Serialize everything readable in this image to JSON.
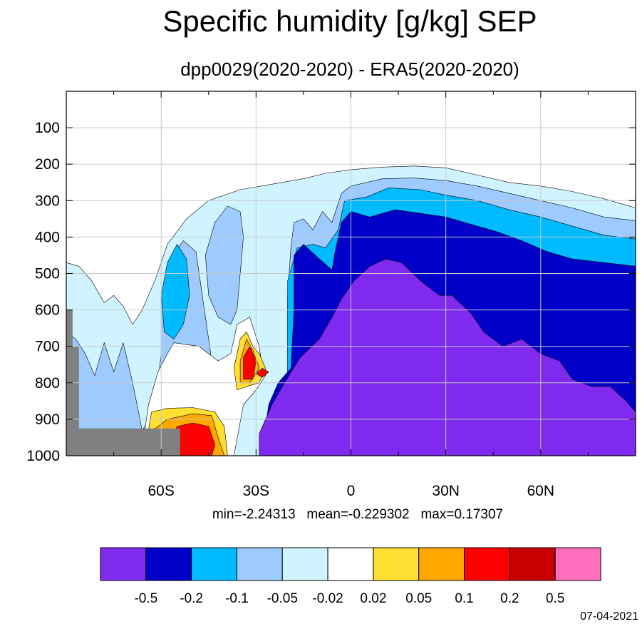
{
  "chart_data": {
    "type": "heatmap",
    "title": "Specific humidity [g/kg] SEP",
    "subtitle": "dpp0029(2020-2020) - ERA5(2020-2020)",
    "stats": "min=-2.24313   mean=-0.229302   max=0.17307",
    "date": "07-04-2021",
    "xlim": [
      -90,
      90
    ],
    "ylim": [
      1000,
      0
    ],
    "x_ticks": [
      {
        "value": -60,
        "label": "60S"
      },
      {
        "value": -30,
        "label": "30S"
      },
      {
        "value": 0,
        "label": "0"
      },
      {
        "value": 30,
        "label": "30N"
      },
      {
        "value": 60,
        "label": "60N"
      }
    ],
    "y_ticks": [
      {
        "value": 100,
        "label": "100"
      },
      {
        "value": 200,
        "label": "200"
      },
      {
        "value": 300,
        "label": "300"
      },
      {
        "value": 400,
        "label": "400"
      },
      {
        "value": 500,
        "label": "500"
      },
      {
        "value": 600,
        "label": "600"
      },
      {
        "value": 700,
        "label": "700"
      },
      {
        "value": 800,
        "label": "800"
      },
      {
        "value": 900,
        "label": "900"
      },
      {
        "value": 1000,
        "label": "1000"
      }
    ],
    "grid": true,
    "colorbar": {
      "colors": [
        "#7f2aee",
        "#0000c8",
        "#00bbff",
        "#9ecbff",
        "#d0f4ff",
        "#ffffff",
        "#ffe030",
        "#ffa800",
        "#ff0000",
        "#c80000",
        "#ff6ebe"
      ],
      "labels": [
        "-0.5",
        "-0.2",
        "-0.1",
        "-0.05",
        "-0.02",
        "0.02",
        "0.05",
        "0.1",
        "0.2",
        "0.5"
      ]
    },
    "missing_color": "#808080",
    "contours": [
      {
        "level": -0.02,
        "color": "#d0f4ff",
        "points": [
          [
            -90,
            470
          ],
          [
            -86,
            480
          ],
          [
            -82,
            520
          ],
          [
            -78,
            580
          ],
          [
            -75,
            560
          ],
          [
            -72,
            590
          ],
          [
            -69,
            640
          ],
          [
            -66,
            600
          ],
          [
            -62,
            520
          ],
          [
            -58,
            420
          ],
          [
            -52,
            350
          ],
          [
            -45,
            300
          ],
          [
            -35,
            270
          ],
          [
            -25,
            255
          ],
          [
            -15,
            240
          ],
          [
            -8,
            225
          ],
          [
            0,
            215
          ],
          [
            10,
            208
          ],
          [
            20,
            205
          ],
          [
            30,
            210
          ],
          [
            40,
            230
          ],
          [
            50,
            250
          ],
          [
            60,
            260
          ],
          [
            70,
            275
          ],
          [
            80,
            295
          ],
          [
            86,
            310
          ],
          [
            90,
            320
          ],
          [
            90,
            1000
          ],
          [
            -90,
            1000
          ]
        ]
      },
      {
        "level": -0.05,
        "color": "#9ecbff",
        "points": [
          [
            -90,
            660
          ],
          [
            -87,
            680
          ],
          [
            -84,
            720
          ],
          [
            -81,
            780
          ],
          [
            -78,
            690
          ],
          [
            -75,
            770
          ],
          [
            -72,
            690
          ],
          [
            -69,
            800
          ],
          [
            -66,
            930
          ],
          [
            -62,
            880
          ],
          [
            -60,
            720
          ],
          [
            -60,
            560
          ],
          [
            -57,
            460
          ],
          [
            -53,
            410
          ],
          [
            -49,
            440
          ],
          [
            -47,
            560
          ],
          [
            -45,
            680
          ],
          [
            -42,
            860
          ],
          [
            -40,
            1000
          ],
          [
            -90,
            1000
          ]
        ]
      },
      {
        "level": -0.05,
        "color": "#9ecbff",
        "points": [
          [
            -46,
            450
          ],
          [
            -43,
            360
          ],
          [
            -39,
            315
          ],
          [
            -35,
            330
          ],
          [
            -34,
            400
          ],
          [
            -35,
            500
          ],
          [
            -36,
            600
          ],
          [
            -38,
            640
          ],
          [
            -42,
            620
          ],
          [
            -45,
            560
          ]
        ]
      },
      {
        "level": -0.05,
        "color": "#9ecbff",
        "points": [
          [
            -20,
            1000
          ],
          [
            -20,
            560
          ],
          [
            -19,
            430
          ],
          [
            -18,
            360
          ],
          [
            -15,
            350
          ],
          [
            -12,
            380
          ],
          [
            -9,
            330
          ],
          [
            -6,
            360
          ],
          [
            -3,
            280
          ],
          [
            0,
            260
          ],
          [
            10,
            240
          ],
          [
            20,
            238
          ],
          [
            30,
            245
          ],
          [
            40,
            260
          ],
          [
            50,
            280
          ],
          [
            60,
            300
          ],
          [
            70,
            320
          ],
          [
            80,
            345
          ],
          [
            90,
            355
          ],
          [
            90,
            1000
          ]
        ]
      },
      {
        "level": -0.1,
        "color": "#00bbff",
        "points": [
          [
            -58,
            470
          ],
          [
            -55,
            420
          ],
          [
            -52,
            460
          ],
          [
            -51,
            560
          ],
          [
            -53,
            640
          ],
          [
            -56,
            680
          ],
          [
            -59,
            660
          ],
          [
            -60,
            560
          ]
        ]
      },
      {
        "level": -0.1,
        "color": "#00bbff",
        "points": [
          [
            -20,
            1000
          ],
          [
            -20,
            520
          ],
          [
            -17,
            430
          ],
          [
            -12,
            420
          ],
          [
            -8,
            430
          ],
          [
            -4,
            380
          ],
          [
            -2,
            300
          ],
          [
            5,
            290
          ],
          [
            12,
            265
          ],
          [
            22,
            270
          ],
          [
            30,
            285
          ],
          [
            40,
            300
          ],
          [
            50,
            325
          ],
          [
            60,
            345
          ],
          [
            70,
            370
          ],
          [
            80,
            395
          ],
          [
            90,
            405
          ],
          [
            90,
            1000
          ]
        ]
      },
      {
        "level": -0.2,
        "color": "#0000c8",
        "points": [
          [
            -26,
            1000
          ],
          [
            -27,
            920
          ],
          [
            -26,
            860
          ],
          [
            -23,
            800
          ],
          [
            -19,
            760
          ],
          [
            -18,
            600
          ],
          [
            -18,
            450
          ],
          [
            -15,
            420
          ],
          [
            -10,
            460
          ],
          [
            -6,
            490
          ],
          [
            -5,
            440
          ],
          [
            -3,
            360
          ],
          [
            0,
            330
          ],
          [
            6,
            345
          ],
          [
            14,
            325
          ],
          [
            22,
            335
          ],
          [
            30,
            345
          ],
          [
            38,
            365
          ],
          [
            46,
            385
          ],
          [
            54,
            410
          ],
          [
            62,
            440
          ],
          [
            70,
            460
          ],
          [
            80,
            470
          ],
          [
            90,
            480
          ],
          [
            90,
            1000
          ]
        ]
      },
      {
        "level": -0.5,
        "color": "#7f2aee",
        "points": [
          [
            -29,
            1000
          ],
          [
            -29,
            940
          ],
          [
            -25,
            860
          ],
          [
            -21,
            800
          ],
          [
            -16,
            730
          ],
          [
            -10,
            680
          ],
          [
            -6,
            620
          ],
          [
            -3,
            570
          ],
          [
            1,
            520
          ],
          [
            6,
            480
          ],
          [
            11,
            460
          ],
          [
            16,
            470
          ],
          [
            22,
            520
          ],
          [
            28,
            560
          ],
          [
            32,
            560
          ],
          [
            38,
            610
          ],
          [
            42,
            660
          ],
          [
            48,
            700
          ],
          [
            54,
            680
          ],
          [
            60,
            720
          ],
          [
            66,
            740
          ],
          [
            70,
            790
          ],
          [
            76,
            810
          ],
          [
            82,
            810
          ],
          [
            87,
            850
          ],
          [
            90,
            880
          ],
          [
            90,
            1000
          ]
        ]
      },
      {
        "level": 0.02,
        "color": "#ffffff",
        "points": [
          [
            -66,
            1000
          ],
          [
            -66,
            980
          ],
          [
            -64,
            860
          ],
          [
            -61,
            770
          ],
          [
            -58,
            720
          ],
          [
            -56,
            690
          ],
          [
            -48,
            700
          ],
          [
            -42,
            740
          ],
          [
            -38,
            720
          ],
          [
            -36,
            640
          ],
          [
            -32,
            620
          ],
          [
            -29,
            700
          ],
          [
            -28,
            760
          ],
          [
            -27,
            780
          ],
          [
            -30,
            820
          ],
          [
            -34,
            860
          ],
          [
            -37,
            1000
          ]
        ]
      },
      {
        "level": 0.05,
        "color": "#ffe030",
        "points": [
          [
            -65,
            1000
          ],
          [
            -64,
            930
          ],
          [
            -63,
            880
          ],
          [
            -58,
            870
          ],
          [
            -50,
            868
          ],
          [
            -43,
            880
          ],
          [
            -40,
            920
          ],
          [
            -39,
            1000
          ]
        ]
      },
      {
        "level": 0.05,
        "color": "#ffe030",
        "points": [
          [
            -36,
            820
          ],
          [
            -37,
            760
          ],
          [
            -35,
            680
          ],
          [
            -33,
            660
          ],
          [
            -31,
            700
          ],
          [
            -29,
            720
          ],
          [
            -27,
            760
          ],
          [
            -29,
            800
          ],
          [
            -33,
            810
          ]
        ]
      },
      {
        "level": 0.1,
        "color": "#ffa800",
        "points": [
          [
            -64,
            1000
          ],
          [
            -64,
            940
          ],
          [
            -58,
            900
          ],
          [
            -50,
            885
          ],
          [
            -44,
            890
          ],
          [
            -42,
            950
          ],
          [
            -40,
            1000
          ]
        ]
      },
      {
        "level": 0.1,
        "color": "#ffa800",
        "points": [
          [
            -35,
            800
          ],
          [
            -35,
            740
          ],
          [
            -33,
            680
          ],
          [
            -31,
            710
          ],
          [
            -29,
            760
          ],
          [
            -32,
            800
          ]
        ]
      },
      {
        "level": 0.2,
        "color": "#ff0000",
        "points": [
          [
            -58,
            1000
          ],
          [
            -55,
            920
          ],
          [
            -50,
            910
          ],
          [
            -45,
            920
          ],
          [
            -43,
            970
          ],
          [
            -44,
            1000
          ]
        ]
      },
      {
        "level": 0.2,
        "color": "#ff0000",
        "points": [
          [
            -34,
            790
          ],
          [
            -34,
            730
          ],
          [
            -32,
            700
          ],
          [
            -30,
            740
          ],
          [
            -31,
            790
          ]
        ]
      },
      {
        "level": 0.2,
        "color": "#ff0000",
        "points": [
          [
            -30,
            775
          ],
          [
            -28,
            760
          ],
          [
            -26,
            770
          ],
          [
            -28,
            785
          ]
        ]
      }
    ],
    "missing_regions": [
      [
        [
          -90,
          600
        ],
        [
          -88,
          600
        ],
        [
          -88,
          700
        ],
        [
          -86,
          700
        ],
        [
          -86,
          925
        ],
        [
          -54,
          925
        ],
        [
          -54,
          1000
        ],
        [
          -90,
          1000
        ]
      ]
    ]
  }
}
